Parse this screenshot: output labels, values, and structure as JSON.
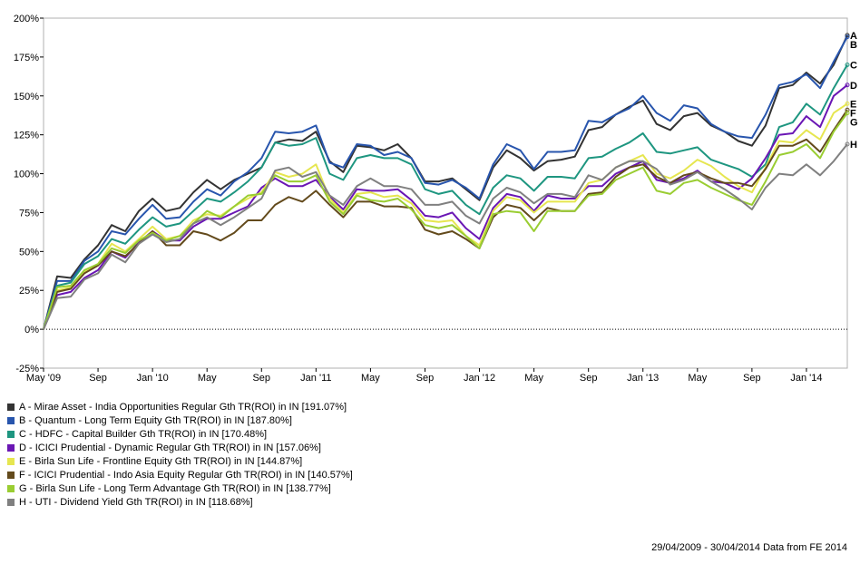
{
  "chart_data": {
    "type": "line",
    "ylim": [
      -25,
      200
    ],
    "y_ticks": [
      "200%",
      "175%",
      "150%",
      "125%",
      "100%",
      "75%",
      "50%",
      "25%",
      "0%",
      "-25%"
    ],
    "x_ticks": [
      "May '09",
      "Sep",
      "Jan '10",
      "May",
      "Sep",
      "Jan '11",
      "May",
      "Sep",
      "Jan '12",
      "May",
      "Sep",
      "Jan '13",
      "May",
      "Sep",
      "Jan '14"
    ],
    "zero_line": "dotted",
    "periods": [
      "2009-05",
      "2009-06",
      "2009-07",
      "2009-08",
      "2009-09",
      "2009-10",
      "2009-11",
      "2009-12",
      "2010-01",
      "2010-02",
      "2010-03",
      "2010-04",
      "2010-05",
      "2010-06",
      "2010-07",
      "2010-08",
      "2010-09",
      "2010-10",
      "2010-11",
      "2010-12",
      "2011-01",
      "2011-02",
      "2011-03",
      "2011-04",
      "2011-05",
      "2011-06",
      "2011-07",
      "2011-08",
      "2011-09",
      "2011-10",
      "2011-11",
      "2011-12",
      "2012-01",
      "2012-02",
      "2012-03",
      "2012-04",
      "2012-05",
      "2012-06",
      "2012-07",
      "2012-08",
      "2012-09",
      "2012-10",
      "2012-11",
      "2012-12",
      "2013-01",
      "2013-02",
      "2013-03",
      "2013-04",
      "2013-05",
      "2013-06",
      "2013-07",
      "2013-08",
      "2013-09",
      "2013-10",
      "2013-11",
      "2013-12",
      "2014-01",
      "2014-02",
      "2014-03",
      "2014-04"
    ],
    "series": [
      {
        "label": "A",
        "color": "#333333",
        "values": [
          0,
          34,
          33,
          45,
          54,
          67,
          63,
          76,
          84,
          76,
          78,
          88,
          96,
          90,
          96,
          100,
          104,
          120,
          122,
          121,
          127,
          108,
          101,
          118,
          117,
          115,
          119,
          110,
          95,
          95,
          97,
          90,
          83,
          104,
          115,
          110,
          102,
          108,
          109,
          111,
          128,
          130,
          138,
          143,
          147,
          132,
          128,
          137,
          139,
          131,
          127,
          121,
          118,
          131,
          155,
          157,
          165,
          158,
          170,
          189
        ]
      },
      {
        "label": "B",
        "color": "#2855ad",
        "values": [
          0,
          31,
          31,
          44,
          50,
          63,
          61,
          71,
          80,
          71,
          72,
          82,
          90,
          86,
          95,
          101,
          110,
          127,
          126,
          127,
          131,
          107,
          104,
          119,
          118,
          112,
          114,
          110,
          94,
          93,
          96,
          91,
          84,
          106,
          119,
          115,
          103,
          114,
          114,
          115,
          134,
          133,
          138,
          142,
          150,
          139,
          134,
          144,
          142,
          132,
          127,
          124,
          123,
          138,
          157,
          159,
          164,
          155,
          172,
          188
        ]
      },
      {
        "label": "C",
        "color": "#1e9680",
        "values": [
          0,
          28,
          30,
          42,
          47,
          58,
          55,
          64,
          72,
          66,
          68,
          76,
          84,
          82,
          88,
          95,
          104,
          120,
          118,
          119,
          123,
          100,
          96,
          110,
          112,
          110,
          110,
          106,
          90,
          87,
          89,
          80,
          74,
          91,
          99,
          97,
          89,
          98,
          98,
          97,
          110,
          111,
          116,
          120,
          126,
          114,
          113,
          115,
          117,
          109,
          106,
          103,
          98,
          106,
          130,
          133,
          145,
          138,
          155,
          170
        ]
      },
      {
        "label": "D",
        "color": "#6a16b4",
        "values": [
          0,
          22,
          24,
          33,
          38,
          50,
          46,
          56,
          63,
          57,
          57,
          66,
          71,
          71,
          75,
          79,
          91,
          97,
          92,
          92,
          96,
          85,
          77,
          90,
          89,
          89,
          90,
          83,
          73,
          72,
          75,
          65,
          58,
          78,
          87,
          85,
          76,
          86,
          84,
          84,
          92,
          92,
          100,
          104,
          108,
          96,
          94,
          97,
          102,
          95,
          94,
          90,
          97,
          110,
          125,
          126,
          137,
          130,
          150,
          157
        ]
      },
      {
        "label": "E",
        "color": "#e6e650",
        "values": [
          0,
          25,
          27,
          37,
          42,
          55,
          50,
          58,
          66,
          58,
          60,
          70,
          74,
          73,
          79,
          84,
          88,
          101,
          98,
          100,
          106,
          84,
          75,
          87,
          88,
          85,
          86,
          81,
          70,
          69,
          70,
          60,
          54,
          76,
          85,
          83,
          75,
          82,
          82,
          82,
          94,
          96,
          104,
          108,
          112,
          100,
          97,
          102,
          109,
          105,
          98,
          92,
          88,
          104,
          121,
          120,
          128,
          122,
          139,
          145
        ]
      },
      {
        "label": "F",
        "color": "#634a1c",
        "values": [
          0,
          24,
          26,
          36,
          41,
          50,
          47,
          55,
          63,
          54,
          54,
          63,
          61,
          57,
          62,
          70,
          70,
          80,
          85,
          82,
          89,
          80,
          72,
          82,
          82,
          79,
          79,
          78,
          64,
          61,
          63,
          58,
          52,
          72,
          80,
          78,
          70,
          78,
          76,
          76,
          87,
          88,
          98,
          104,
          106,
          98,
          94,
          99,
          101,
          97,
          94,
          94,
          92,
          103,
          118,
          118,
          122,
          114,
          128,
          141
        ]
      },
      {
        "label": "G",
        "color": "#9acd32",
        "values": [
          0,
          27,
          28,
          38,
          42,
          52,
          49,
          57,
          62,
          57,
          60,
          68,
          76,
          72,
          79,
          86,
          87,
          99,
          95,
          95,
          99,
          82,
          74,
          86,
          83,
          82,
          84,
          77,
          67,
          65,
          67,
          60,
          52,
          74,
          76,
          75,
          63,
          76,
          76,
          76,
          86,
          87,
          96,
          100,
          104,
          89,
          87,
          94,
          96,
          91,
          87,
          83,
          80,
          95,
          112,
          114,
          119,
          110,
          127,
          139
        ]
      },
      {
        "label": "H",
        "color": "#808080",
        "values": [
          0,
          20,
          21,
          32,
          36,
          48,
          43,
          55,
          61,
          56,
          58,
          68,
          72,
          67,
          72,
          78,
          84,
          102,
          104,
          98,
          101,
          86,
          80,
          92,
          97,
          92,
          92,
          90,
          80,
          80,
          82,
          73,
          68,
          84,
          91,
          88,
          81,
          87,
          87,
          85,
          99,
          96,
          104,
          108,
          108,
          103,
          93,
          96,
          101,
          95,
          90,
          84,
          77,
          91,
          100,
          99,
          106,
          99,
          108,
          119
        ]
      }
    ]
  },
  "legend": [
    {
      "color": "#333333",
      "text": "A - Mirae Asset - India Opportunities Regular Gth TR(ROI) in IN [191.07%]"
    },
    {
      "color": "#2855ad",
      "text": "B - Quantum - Long Term Equity Gth TR(ROI) in IN [187.80%]"
    },
    {
      "color": "#1e9680",
      "text": "C - HDFC - Capital Builder Gth TR(ROI) in IN [170.48%]"
    },
    {
      "color": "#6a16b4",
      "text": "D - ICICI Prudential - Dynamic Regular Gth TR(ROI) in IN [157.06%]"
    },
    {
      "color": "#e6e650",
      "text": "E - Birla Sun Life - Frontline Equity Gth TR(ROI) in IN [144.87%]"
    },
    {
      "color": "#634a1c",
      "text": "F - ICICI Prudential - Indo Asia Equity Regular Gth TR(ROI) in IN [140.57%]"
    },
    {
      "color": "#9acd32",
      "text": "G - Birla Sun Life - Long Term Advantage Gth TR(ROI) in IN [138.77%]"
    },
    {
      "color": "#808080",
      "text": "H - UTI - Dividend Yield Gth TR(ROI) in IN [118.68%]"
    }
  ],
  "footer": "29/04/2009 - 30/04/2014 Data from FE 2014"
}
